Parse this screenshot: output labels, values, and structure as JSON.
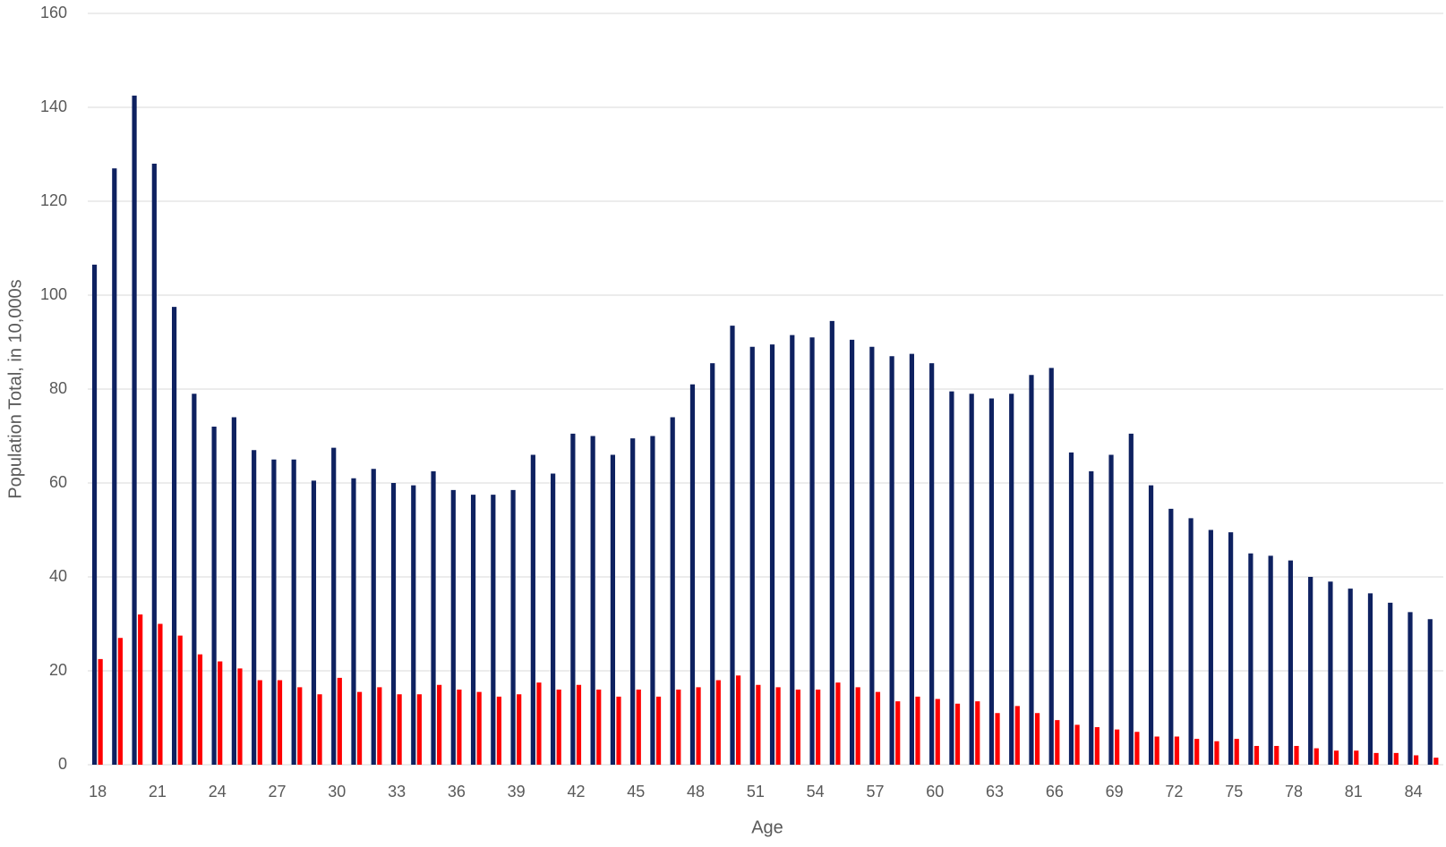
{
  "chart_data": {
    "type": "bar",
    "x_label": "Age",
    "y_label": "Population Total, in 10,000s",
    "categories": [
      "18",
      null,
      null,
      "21",
      null,
      null,
      "24",
      null,
      null,
      "27",
      null,
      null,
      "30",
      null,
      null,
      "33",
      null,
      null,
      "36",
      null,
      null,
      "39",
      null,
      null,
      "42",
      null,
      null,
      "45",
      null,
      null,
      "48",
      null,
      null,
      "51",
      null,
      null,
      "54",
      null,
      null,
      "57",
      null,
      null,
      "60",
      null,
      null,
      "63",
      null,
      null,
      "66",
      null,
      null,
      "69",
      null,
      null,
      "72",
      null,
      null,
      "75",
      null,
      null,
      "78",
      null,
      null,
      "81",
      null,
      null,
      "84",
      null
    ],
    "series": [
      {
        "color": "#0e2160",
        "values": [
          106.5,
          127,
          142.5,
          128,
          97.5,
          79,
          72,
          74,
          67,
          65,
          65,
          60.5,
          67.5,
          61,
          63,
          60,
          59.5,
          62.5,
          58.5,
          57.5,
          57.5,
          58.5,
          66,
          62,
          70.5,
          70,
          66,
          69.5,
          70,
          74,
          81,
          85.5,
          93.5,
          89,
          89.5,
          91.5,
          91,
          94.5,
          90.5,
          89,
          87,
          87.5,
          85.5,
          79.5,
          79,
          78,
          79,
          83,
          84.5,
          66.5,
          62.5,
          66,
          70.5,
          59.5,
          54.5,
          52.5,
          50,
          49.5,
          45,
          44.5,
          43.5,
          40,
          39,
          37.5,
          36.5,
          34.5,
          32.5,
          31
        ]
      },
      {
        "color": "#ff0000",
        "values": [
          22.5,
          27,
          32,
          30,
          27.5,
          23.5,
          22,
          20.5,
          18,
          18,
          16.5,
          15,
          18.5,
          15.5,
          16.5,
          15,
          15,
          17,
          16,
          15.5,
          14.5,
          15,
          17.5,
          16,
          17,
          16,
          14.5,
          16,
          14.5,
          16,
          16.5,
          18,
          19,
          17,
          16.5,
          16,
          16,
          17.5,
          16.5,
          15.5,
          13.5,
          14.5,
          14,
          13,
          13.5,
          11,
          12.5,
          11,
          9.5,
          8.5,
          8,
          7.5,
          7,
          6,
          6,
          5.5,
          5,
          5.5,
          4,
          4,
          4,
          3.5,
          3,
          3,
          2.5,
          2.5,
          2,
          1.5
        ]
      }
    ],
    "ylim": [
      0,
      160
    ],
    "yticks": [
      0,
      20,
      40,
      60,
      80,
      100,
      120,
      140,
      160
    ],
    "grid": true
  }
}
